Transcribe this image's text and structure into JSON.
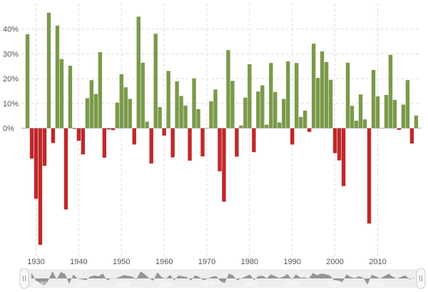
{
  "chart_data": {
    "type": "bar",
    "title": "",
    "xlabel": "",
    "ylabel": "",
    "ylim": [
      -50,
      50
    ],
    "y_ticks": [
      0,
      10,
      20,
      30,
      40
    ],
    "y_tick_labels": [
      "0%",
      "10%",
      "20%",
      "30%",
      "40%"
    ],
    "x_ticks": [
      1930,
      1940,
      1950,
      1960,
      1970,
      1980,
      1990,
      2000,
      2010
    ],
    "x_tick_labels": [
      "1930",
      "1940",
      "1950",
      "1960",
      "1970",
      "1980",
      "1990",
      "2000",
      "2010"
    ],
    "grid": true,
    "colors": {
      "positive": "#7a9a4a",
      "negative": "#c0282b"
    },
    "years": [
      1928,
      1929,
      1930,
      1931,
      1932,
      1933,
      1934,
      1935,
      1936,
      1937,
      1938,
      1939,
      1940,
      1941,
      1942,
      1943,
      1944,
      1945,
      1946,
      1947,
      1948,
      1949,
      1950,
      1951,
      1952,
      1953,
      1954,
      1955,
      1956,
      1957,
      1958,
      1959,
      1960,
      1961,
      1962,
      1963,
      1964,
      1965,
      1966,
      1967,
      1968,
      1969,
      1970,
      1971,
      1972,
      1973,
      1974,
      1975,
      1976,
      1977,
      1978,
      1979,
      1980,
      1981,
      1982,
      1983,
      1984,
      1985,
      1986,
      1987,
      1988,
      1989,
      1990,
      1991,
      1992,
      1993,
      1994,
      1995,
      1996,
      1997,
      1998,
      1999,
      2000,
      2001,
      2002,
      2003,
      2004,
      2005,
      2006,
      2007,
      2008,
      2009,
      2010,
      2011,
      2012,
      2013,
      2014,
      2015,
      2016,
      2017,
      2018,
      2019
    ],
    "values": [
      37.9,
      -12.3,
      -28.5,
      -47.1,
      -15.2,
      46.6,
      -6.0,
      41.4,
      27.9,
      -32.8,
      25.2,
      -0.3,
      -5.1,
      -10.6,
      12.1,
      19.4,
      13.8,
      30.7,
      -11.9,
      -0.5,
      -0.8,
      10.3,
      21.8,
      16.5,
      11.8,
      -6.6,
      45.0,
      26.4,
      2.6,
      -14.3,
      38.1,
      8.5,
      -3.0,
      23.1,
      -11.8,
      18.9,
      13.0,
      9.1,
      -13.1,
      20.1,
      7.7,
      -11.4,
      0.1,
      10.8,
      15.6,
      -17.4,
      -29.7,
      31.5,
      19.1,
      -11.5,
      1.1,
      12.3,
      25.8,
      -9.7,
      14.8,
      17.3,
      1.4,
      26.3,
      14.6,
      2.3,
      11.8,
      27.0,
      -6.6,
      26.3,
      4.5,
      7.1,
      -1.5,
      34.1,
      20.3,
      31.0,
      26.7,
      19.5,
      -10.1,
      -13.0,
      -23.4,
      26.4,
      9.0,
      3.0,
      13.6,
      3.5,
      -38.5,
      23.5,
      12.8,
      0.0,
      13.4,
      29.6,
      11.4,
      -0.7,
      9.5,
      19.4,
      -6.2,
      5.1
    ]
  },
  "navigator": {
    "labels": [
      "1930",
      "1940",
      "1950",
      "1960",
      "1970",
      "1980",
      "1990",
      "2000",
      "2010"
    ]
  }
}
